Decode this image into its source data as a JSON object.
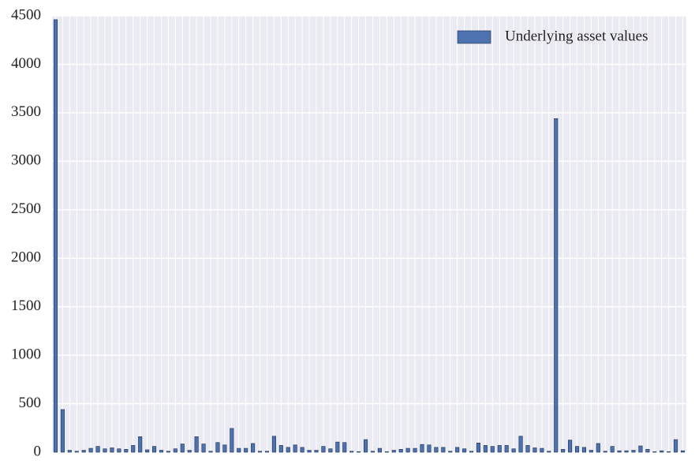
{
  "chart_data": {
    "type": "bar",
    "categories": [
      null,
      null,
      null,
      null,
      null,
      null,
      null,
      null,
      null,
      null,
      null,
      null,
      null,
      null,
      null,
      null,
      null,
      null,
      null,
      null,
      null,
      null,
      null,
      null,
      null,
      null,
      null,
      null,
      null,
      null,
      null,
      null,
      null,
      null,
      null,
      null,
      null,
      null,
      null,
      null,
      null,
      null,
      null,
      null,
      null,
      null,
      null,
      null,
      null,
      null,
      null,
      null,
      null,
      null,
      null,
      null,
      null,
      null,
      null,
      null,
      null,
      null,
      null,
      null,
      null,
      null,
      null,
      null,
      null,
      null,
      null,
      null,
      null,
      null,
      null,
      null,
      null,
      null,
      null,
      null,
      null,
      null,
      null,
      null,
      null,
      null,
      null,
      null,
      null,
      null
    ],
    "series": [
      {
        "name": "Underlying asset values",
        "color": "#4c72b0",
        "values": [
          4460,
          440,
          20,
          10,
          20,
          40,
          60,
          35,
          45,
          35,
          30,
          70,
          160,
          25,
          60,
          20,
          10,
          35,
          85,
          20,
          160,
          85,
          10,
          100,
          75,
          245,
          40,
          40,
          90,
          10,
          10,
          165,
          70,
          50,
          75,
          50,
          20,
          20,
          60,
          35,
          105,
          100,
          10,
          5,
          130,
          10,
          40,
          5,
          20,
          30,
          40,
          40,
          80,
          75,
          50,
          50,
          10,
          50,
          35,
          10,
          95,
          70,
          60,
          70,
          70,
          35,
          165,
          70,
          45,
          40,
          10,
          3440,
          30,
          125,
          60,
          50,
          20,
          90,
          10,
          60,
          15,
          15,
          20,
          65,
          30,
          5,
          15,
          5,
          130,
          15
        ]
      }
    ],
    "ylim": [
      0,
      4500
    ],
    "yticks": [
      0,
      500,
      1000,
      1500,
      2000,
      2500,
      3000,
      3500,
      4000,
      4500
    ],
    "grid": true,
    "legend": "upper right"
  }
}
